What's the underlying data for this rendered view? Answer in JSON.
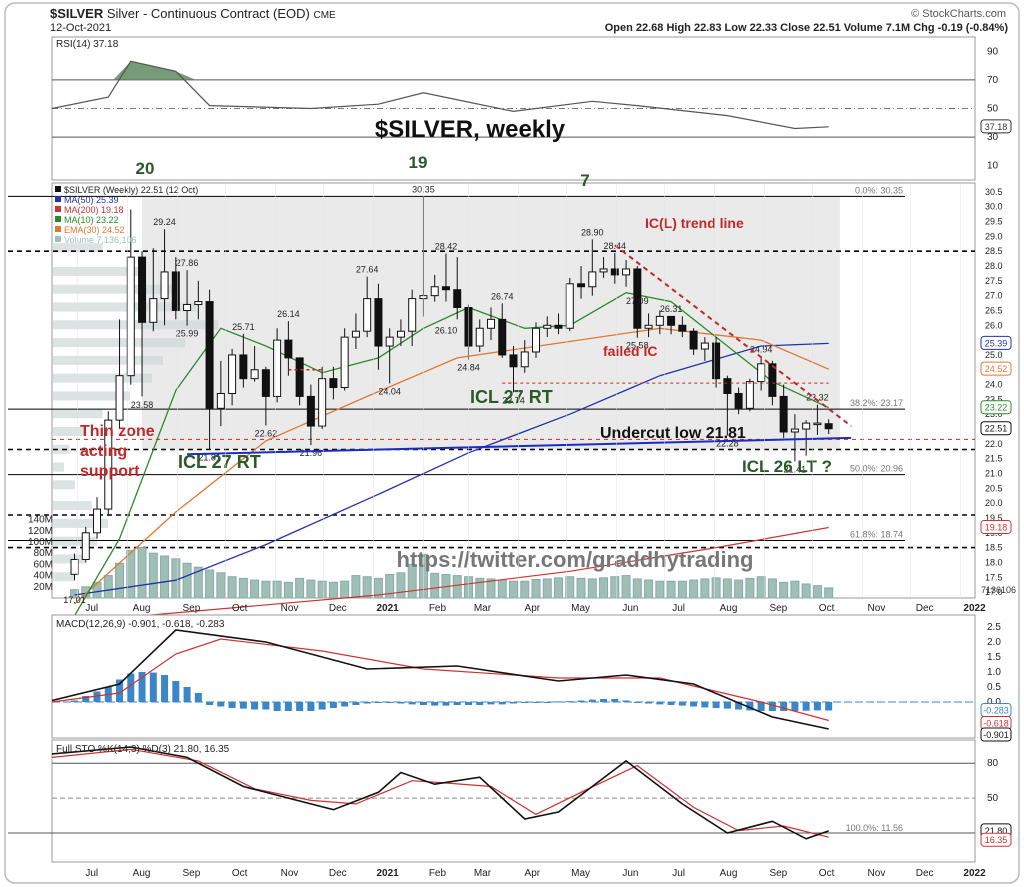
{
  "header": {
    "symbol": "$SILVER",
    "description": "Silver - Continuous Contract (EOD)",
    "exchange": "CME",
    "date": "12-Oct-2021",
    "watermark": "© StockCharts.com",
    "ohlc_text": "Open 22.68  High 22.83  Low 22.33  Close 22.51  Volume 7.1M  Chg -0.19 (-0.84%)"
  },
  "rsi_panel": {
    "label": "RSI(14) 37.18",
    "axis_labels": [
      "90",
      "70",
      "50",
      "30",
      "10"
    ],
    "value_tag": "37.18"
  },
  "price_panel": {
    "legend": [
      "$SILVER (Weekly) 22.51 (12 Oct)",
      "MA(50) 25.39",
      "MA(200) 19.18",
      "MA(10) 23.22",
      "EMA(30) 24.52",
      "Volume 7,136,106"
    ],
    "axis_labels": [
      "30.5",
      "30.0",
      "29.5",
      "29.0",
      "28.5",
      "28.0",
      "27.5",
      "27.0",
      "26.5",
      "26.0",
      "25.5",
      "25.0",
      "24.5",
      "24.0",
      "23.5",
      "23.0",
      "22.5",
      "22.0",
      "21.5",
      "21.0",
      "20.5",
      "20.0",
      "19.5",
      "19.0",
      "18.5",
      "18.0",
      "17.5",
      "17.0"
    ],
    "volume_axis_labels": [
      "140M",
      "120M",
      "100M",
      "80M",
      "60M",
      "40M",
      "20M"
    ],
    "fib_labels": [
      "0.0%: 30.35",
      "38.2%: 23.17",
      "50.0%: 20.96",
      "61.8%: 18.74"
    ],
    "value_tags": [
      "25.39",
      "24.52",
      "23.22",
      "22.51",
      "19.18",
      "7136106"
    ],
    "annotations": {
      "title": "$SILVER, weekly",
      "count_20": "20",
      "count_19": "19",
      "count_7": "7",
      "trend_line": "IC(L) trend line",
      "failed_ic": "failed IC",
      "icl_27_rt_mid": "ICL 27 RT",
      "icl_27_rt_left": "ICL 27 RT",
      "thin_zone": [
        "Thin zone",
        "acting",
        "support"
      ],
      "undercut": "Undercut low 21.81",
      "icl_26": "ICL 26 LT ?",
      "twitter": "https://twitter.com/graddhytrading"
    },
    "price_labels": [
      "30.35",
      "29.24",
      "27.86",
      "25.99",
      "25.71",
      "26.14",
      "27.64",
      "28.42",
      "26.74",
      "26.10",
      "24.84",
      "24.04",
      "28.90",
      "28.44",
      "27.09",
      "26.31",
      "25.58",
      "24.94",
      "23.74",
      "23.58",
      "22.62",
      "21.81",
      "21.96",
      "22.28",
      "21.41",
      "23.32",
      "17.01"
    ]
  },
  "x_axis_labels": [
    "Jul",
    "Aug",
    "Sep",
    "Oct",
    "Nov",
    "Dec",
    "2021",
    "Feb",
    "Mar",
    "Apr",
    "May",
    "Jun",
    "Jul",
    "Aug",
    "Sep",
    "Oct",
    "Nov",
    "Dec",
    "2022"
  ],
  "macd_panel": {
    "label": "MACD(12,26,9) -0.901, -0.618, -0.283",
    "axis_labels": [
      "2.5",
      "2.0",
      "1.5",
      "1.0",
      "0.5",
      "0.0",
      "-0.5",
      "-1.0"
    ],
    "value_tags": [
      "-0.283",
      "-0.618",
      "-0.901"
    ]
  },
  "sto_panel": {
    "label": "Full STO %K(14,3) %D(3) 21.80, 16.35",
    "axis_labels": [
      "80",
      "50",
      "20"
    ],
    "fib_label": "100.0%: 11.56",
    "value_tags": [
      "21.80",
      "16.35"
    ]
  },
  "colors": {
    "candle_up": "#ffffff",
    "candle_down": "#111111",
    "ma50": "#2233aa",
    "ma200": "#cc3333",
    "ma10": "#2a8a2a",
    "ema30": "#e07830",
    "volume": "#9fbfb4",
    "macd_hist": "#3a86c8",
    "annotation_red": "#c0282a",
    "annotation_green": "#2a5a2a"
  },
  "chart_data": {
    "type": "candlestick",
    "timeframe": "weekly",
    "title": "$SILVER, weekly",
    "ylim": [
      16.8,
      30.8
    ],
    "x_range": [
      "2020-06-15",
      "2022-01-10"
    ],
    "candles": [
      {
        "date": "2020-06-29",
        "o": 17.6,
        "h": 18.3,
        "l": 17.4,
        "c": 18.1
      },
      {
        "date": "2020-07-06",
        "o": 18.1,
        "h": 19.2,
        "l": 18.0,
        "c": 19.0
      },
      {
        "date": "2020-07-13",
        "o": 19.0,
        "h": 20.2,
        "l": 18.8,
        "c": 19.8
      },
      {
        "date": "2020-07-20",
        "o": 19.8,
        "h": 23.1,
        "l": 19.6,
        "c": 22.8
      },
      {
        "date": "2020-07-27",
        "o": 22.8,
        "h": 26.2,
        "l": 22.5,
        "c": 24.3
      },
      {
        "date": "2020-08-03",
        "o": 24.3,
        "h": 29.9,
        "l": 24.0,
        "c": 28.3
      },
      {
        "date": "2020-08-10",
        "o": 28.3,
        "h": 28.5,
        "l": 23.6,
        "c": 26.1
      },
      {
        "date": "2020-08-17",
        "o": 26.1,
        "h": 28.6,
        "l": 25.8,
        "c": 26.9
      },
      {
        "date": "2020-08-24",
        "o": 26.9,
        "h": 29.24,
        "l": 26.0,
        "c": 27.8
      },
      {
        "date": "2020-08-31",
        "o": 27.8,
        "h": 28.3,
        "l": 26.2,
        "c": 26.5
      },
      {
        "date": "2020-09-07",
        "o": 26.5,
        "h": 27.86,
        "l": 25.99,
        "c": 26.7
      },
      {
        "date": "2020-09-14",
        "o": 26.7,
        "h": 27.5,
        "l": 26.2,
        "c": 26.8
      },
      {
        "date": "2020-09-21",
        "o": 26.8,
        "h": 27.2,
        "l": 21.81,
        "c": 23.2
      },
      {
        "date": "2020-09-28",
        "o": 23.2,
        "h": 24.8,
        "l": 22.6,
        "c": 23.7
      },
      {
        "date": "2020-10-05",
        "o": 23.7,
        "h": 25.2,
        "l": 23.3,
        "c": 25.0
      },
      {
        "date": "2020-10-12",
        "o": 25.0,
        "h": 25.71,
        "l": 23.9,
        "c": 24.2
      },
      {
        "date": "2020-10-19",
        "o": 24.2,
        "h": 25.3,
        "l": 24.1,
        "c": 24.5
      },
      {
        "date": "2020-10-26",
        "o": 24.5,
        "h": 24.6,
        "l": 22.62,
        "c": 23.6
      },
      {
        "date": "2020-11-02",
        "o": 23.6,
        "h": 25.9,
        "l": 23.4,
        "c": 25.5
      },
      {
        "date": "2020-11-09",
        "o": 25.5,
        "h": 26.14,
        "l": 24.3,
        "c": 24.9
      },
      {
        "date": "2020-11-16",
        "o": 24.9,
        "h": 24.9,
        "l": 23.3,
        "c": 23.6
      },
      {
        "date": "2020-11-23",
        "o": 23.6,
        "h": 24.0,
        "l": 21.96,
        "c": 22.6
      },
      {
        "date": "2020-11-30",
        "o": 22.6,
        "h": 24.6,
        "l": 22.5,
        "c": 24.2
      },
      {
        "date": "2020-12-07",
        "o": 24.2,
        "h": 24.6,
        "l": 23.5,
        "c": 23.9
      },
      {
        "date": "2020-12-14",
        "o": 23.9,
        "h": 25.9,
        "l": 23.8,
        "c": 25.6
      },
      {
        "date": "2020-12-21",
        "o": 25.6,
        "h": 26.4,
        "l": 25.2,
        "c": 25.8
      },
      {
        "date": "2020-12-28",
        "o": 25.8,
        "h": 27.64,
        "l": 25.6,
        "c": 26.9
      },
      {
        "date": "2021-01-04",
        "o": 26.9,
        "h": 27.4,
        "l": 24.5,
        "c": 25.3
      },
      {
        "date": "2021-01-11",
        "o": 25.3,
        "h": 25.9,
        "l": 24.04,
        "c": 25.6
      },
      {
        "date": "2021-01-18",
        "o": 25.6,
        "h": 26.2,
        "l": 25.3,
        "c": 25.8
      },
      {
        "date": "2021-01-25",
        "o": 25.8,
        "h": 27.2,
        "l": 25.3,
        "c": 26.9
      },
      {
        "date": "2021-02-01",
        "o": 26.9,
        "h": 30.35,
        "l": 26.3,
        "c": 27.0
      },
      {
        "date": "2021-02-08",
        "o": 27.0,
        "h": 27.7,
        "l": 26.8,
        "c": 27.3
      },
      {
        "date": "2021-02-15",
        "o": 27.3,
        "h": 28.42,
        "l": 26.8,
        "c": 27.2
      },
      {
        "date": "2021-02-22",
        "o": 27.2,
        "h": 28.3,
        "l": 26.2,
        "c": 26.6
      },
      {
        "date": "2021-03-01",
        "o": 26.6,
        "h": 26.7,
        "l": 24.84,
        "c": 25.3
      },
      {
        "date": "2021-03-08",
        "o": 25.3,
        "h": 26.2,
        "l": 25.1,
        "c": 25.9
      },
      {
        "date": "2021-03-15",
        "o": 25.9,
        "h": 26.6,
        "l": 25.5,
        "c": 26.2
      },
      {
        "date": "2021-03-22",
        "o": 26.2,
        "h": 26.74,
        "l": 24.9,
        "c": 25.0
      },
      {
        "date": "2021-03-29",
        "o": 25.0,
        "h": 25.3,
        "l": 23.74,
        "c": 24.6
      },
      {
        "date": "2021-04-05",
        "o": 24.6,
        "h": 25.5,
        "l": 24.4,
        "c": 25.1
      },
      {
        "date": "2021-04-12",
        "o": 25.1,
        "h": 26.1,
        "l": 24.9,
        "c": 25.9
      },
      {
        "date": "2021-04-19",
        "o": 25.9,
        "h": 26.3,
        "l": 25.6,
        "c": 26.0
      },
      {
        "date": "2021-04-26",
        "o": 26.0,
        "h": 26.4,
        "l": 25.7,
        "c": 25.9
      },
      {
        "date": "2021-05-03",
        "o": 25.9,
        "h": 27.6,
        "l": 25.8,
        "c": 27.4
      },
      {
        "date": "2021-05-10",
        "o": 27.4,
        "h": 28.0,
        "l": 26.9,
        "c": 27.3
      },
      {
        "date": "2021-05-17",
        "o": 27.3,
        "h": 28.9,
        "l": 27.0,
        "c": 27.8
      },
      {
        "date": "2021-05-24",
        "o": 27.8,
        "h": 28.3,
        "l": 27.6,
        "c": 27.9
      },
      {
        "date": "2021-05-31",
        "o": 27.9,
        "h": 28.44,
        "l": 27.4,
        "c": 27.7
      },
      {
        "date": "2021-06-07",
        "o": 27.7,
        "h": 28.2,
        "l": 27.3,
        "c": 27.9
      },
      {
        "date": "2021-06-14",
        "o": 27.9,
        "h": 28.0,
        "l": 25.58,
        "c": 25.9
      },
      {
        "date": "2021-06-21",
        "o": 25.9,
        "h": 26.4,
        "l": 25.6,
        "c": 26.0
      },
      {
        "date": "2021-06-28",
        "o": 26.0,
        "h": 26.5,
        "l": 25.7,
        "c": 26.3
      },
      {
        "date": "2021-07-05",
        "o": 26.3,
        "h": 26.31,
        "l": 25.7,
        "c": 26.0
      },
      {
        "date": "2021-07-12",
        "o": 26.0,
        "h": 26.3,
        "l": 25.6,
        "c": 25.8
      },
      {
        "date": "2021-07-19",
        "o": 25.8,
        "h": 25.9,
        "l": 25.0,
        "c": 25.2
      },
      {
        "date": "2021-07-26",
        "o": 25.2,
        "h": 25.6,
        "l": 24.8,
        "c": 25.4
      },
      {
        "date": "2021-08-02",
        "o": 25.4,
        "h": 25.6,
        "l": 23.9,
        "c": 24.2
      },
      {
        "date": "2021-08-09",
        "o": 24.2,
        "h": 24.3,
        "l": 22.28,
        "c": 23.7
      },
      {
        "date": "2021-08-16",
        "o": 23.7,
        "h": 23.9,
        "l": 23.0,
        "c": 23.2
      },
      {
        "date": "2021-08-23",
        "o": 23.2,
        "h": 24.2,
        "l": 23.1,
        "c": 24.1
      },
      {
        "date": "2021-08-30",
        "o": 24.1,
        "h": 24.94,
        "l": 23.8,
        "c": 24.7
      },
      {
        "date": "2021-09-06",
        "o": 24.7,
        "h": 24.8,
        "l": 23.3,
        "c": 23.6
      },
      {
        "date": "2021-09-13",
        "o": 23.6,
        "h": 24.0,
        "l": 22.2,
        "c": 22.4
      },
      {
        "date": "2021-09-20",
        "o": 22.4,
        "h": 23.0,
        "l": 21.41,
        "c": 22.5
      },
      {
        "date": "2021-09-27",
        "o": 22.5,
        "h": 22.8,
        "l": 21.6,
        "c": 22.7
      },
      {
        "date": "2021-10-04",
        "o": 22.7,
        "h": 23.32,
        "l": 22.3,
        "c": 22.7
      },
      {
        "date": "2021-10-11",
        "o": 22.68,
        "h": 22.83,
        "l": 22.33,
        "c": 22.51
      }
    ],
    "ma50": [
      [
        "2020-06-29",
        16.9
      ],
      [
        "2020-08-31",
        17.4
      ],
      [
        "2020-10-26",
        18.6
      ],
      [
        "2021-01-04",
        20.3
      ],
      [
        "2021-03-01",
        21.7
      ],
      [
        "2021-05-03",
        23.0
      ],
      [
        "2021-06-28",
        24.3
      ],
      [
        "2021-08-30",
        25.3
      ],
      [
        "2021-10-11",
        25.39
      ]
    ],
    "ma200": [
      [
        "2020-06-29",
        16.0
      ],
      [
        "2021-01-04",
        16.9
      ],
      [
        "2021-05-03",
        17.7
      ],
      [
        "2021-08-02",
        18.5
      ],
      [
        "2021-10-11",
        19.18
      ]
    ],
    "ma10": [
      [
        "2020-06-29",
        16.2
      ],
      [
        "2020-07-27",
        18.8
      ],
      [
        "2020-08-31",
        23.8
      ],
      [
        "2020-09-28",
        25.9
      ],
      [
        "2020-10-26",
        25.3
      ],
      [
        "2020-11-30",
        24.4
      ],
      [
        "2021-01-04",
        24.9
      ],
      [
        "2021-02-01",
        25.9
      ],
      [
        "2021-03-01",
        26.6
      ],
      [
        "2021-04-05",
        25.9
      ],
      [
        "2021-05-03",
        26.0
      ],
      [
        "2021-06-07",
        27.1
      ],
      [
        "2021-07-05",
        26.8
      ],
      [
        "2021-08-02",
        25.6
      ],
      [
        "2021-09-06",
        24.1
      ],
      [
        "2021-10-11",
        23.22
      ]
    ],
    "ema30": [
      [
        "2020-06-29",
        16.6
      ],
      [
        "2020-08-31",
        19.7
      ],
      [
        "2020-10-26",
        22.1
      ],
      [
        "2020-12-28",
        23.6
      ],
      [
        "2021-02-22",
        24.9
      ],
      [
        "2021-04-26",
        25.4
      ],
      [
        "2021-06-28",
        25.9
      ],
      [
        "2021-08-30",
        25.5
      ],
      [
        "2021-10-11",
        24.52
      ]
    ],
    "volume_M": [
      15,
      20,
      28,
      40,
      62,
      85,
      90,
      80,
      75,
      70,
      62,
      55,
      50,
      45,
      38,
      35,
      32,
      30,
      30,
      28,
      35,
      32,
      30,
      28,
      30,
      40,
      38,
      35,
      42,
      45,
      60,
      78,
      44,
      42,
      40,
      38,
      35,
      34,
      32,
      30,
      30,
      33,
      34,
      36,
      38,
      35,
      34,
      36,
      38,
      40,
      34,
      32,
      30,
      30,
      30,
      32,
      34,
      36,
      34,
      32,
      35,
      38,
      34,
      28,
      30,
      25,
      22,
      18,
      8
    ],
    "rsi": [
      [
        "2020-06-15",
        50
      ],
      [
        "2020-07-20",
        58
      ],
      [
        "2020-08-03",
        83
      ],
      [
        "2020-08-31",
        76
      ],
      [
        "2020-09-21",
        52
      ],
      [
        "2020-11-23",
        50
      ],
      [
        "2021-01-04",
        53
      ],
      [
        "2021-02-01",
        61
      ],
      [
        "2021-03-29",
        48
      ],
      [
        "2021-05-17",
        55
      ],
      [
        "2021-06-14",
        52
      ],
      [
        "2021-08-09",
        45
      ],
      [
        "2021-09-20",
        36
      ],
      [
        "2021-10-11",
        37.18
      ]
    ],
    "macd": [
      [
        "2020-06-15",
        0.05
      ],
      [
        "2020-07-27",
        0.6
      ],
      [
        "2020-08-31",
        2.4
      ],
      [
        "2020-10-26",
        2.0
      ],
      [
        "2020-12-28",
        1.1
      ],
      [
        "2021-02-22",
        1.2
      ],
      [
        "2021-04-26",
        0.7
      ],
      [
        "2021-06-07",
        0.9
      ],
      [
        "2021-07-19",
        0.6
      ],
      [
        "2021-09-06",
        -0.5
      ],
      [
        "2021-10-11",
        -0.901
      ]
    ],
    "macd_signal": [
      [
        "2020-06-15",
        0.0
      ],
      [
        "2020-07-27",
        0.3
      ],
      [
        "2020-08-31",
        1.6
      ],
      [
        "2020-09-28",
        2.1
      ],
      [
        "2020-11-30",
        1.7
      ],
      [
        "2021-02-01",
        1.1
      ],
      [
        "2021-04-26",
        0.8
      ],
      [
        "2021-06-28",
        0.8
      ],
      [
        "2021-08-30",
        0.0
      ],
      [
        "2021-10-11",
        -0.618
      ]
    ],
    "macd_hist": [
      0.05,
      0.2,
      0.35,
      0.5,
      0.75,
      0.95,
      1.0,
      0.98,
      0.9,
      0.7,
      0.5,
      0.3,
      -0.1,
      -0.15,
      -0.2,
      -0.22,
      -0.25,
      -0.25,
      -0.3,
      -0.3,
      -0.3,
      -0.3,
      -0.25,
      -0.2,
      -0.15,
      -0.1,
      -0.05,
      -0.03,
      -0.02,
      -0.05,
      -0.08,
      -0.1,
      -0.12,
      -0.12,
      -0.1,
      -0.1,
      -0.1,
      -0.08,
      -0.08,
      -0.05,
      -0.03,
      -0.02,
      0.0,
      0.02,
      0.03,
      0.05,
      0.08,
      0.1,
      0.1,
      0.05,
      0.0,
      -0.05,
      -0.08,
      -0.1,
      -0.12,
      -0.15,
      -0.18,
      -0.2,
      -0.22,
      -0.25,
      -0.28,
      -0.3,
      -0.3,
      -0.3,
      -0.3,
      -0.29,
      -0.28,
      -0.283
    ],
    "sto_k": [
      [
        "2020-06-15",
        88
      ],
      [
        "2020-08-03",
        94
      ],
      [
        "2020-09-07",
        85
      ],
      [
        "2020-10-12",
        60
      ],
      [
        "2020-11-09",
        50
      ],
      [
        "2020-12-07",
        40
      ],
      [
        "2021-01-04",
        55
      ],
      [
        "2021-01-18",
        72
      ],
      [
        "2021-02-08",
        62
      ],
      [
        "2021-03-08",
        68
      ],
      [
        "2021-04-05",
        32
      ],
      [
        "2021-04-26",
        38
      ],
      [
        "2021-06-07",
        82
      ],
      [
        "2021-07-12",
        45
      ],
      [
        "2021-08-09",
        20
      ],
      [
        "2021-09-06",
        30
      ],
      [
        "2021-09-27",
        15
      ],
      [
        "2021-10-11",
        21.8
      ]
    ],
    "sto_d": [
      [
        "2020-06-15",
        85
      ],
      [
        "2020-08-03",
        92
      ],
      [
        "2020-09-14",
        82
      ],
      [
        "2020-10-19",
        58
      ],
      [
        "2020-11-23",
        48
      ],
      [
        "2020-12-21",
        45
      ],
      [
        "2021-01-25",
        65
      ],
      [
        "2021-02-15",
        63
      ],
      [
        "2021-03-15",
        60
      ],
      [
        "2021-04-12",
        36
      ],
      [
        "2021-05-10",
        55
      ],
      [
        "2021-06-14",
        78
      ],
      [
        "2021-07-19",
        42
      ],
      [
        "2021-08-16",
        22
      ],
      [
        "2021-09-13",
        26
      ],
      [
        "2021-10-11",
        16.35
      ]
    ]
  }
}
